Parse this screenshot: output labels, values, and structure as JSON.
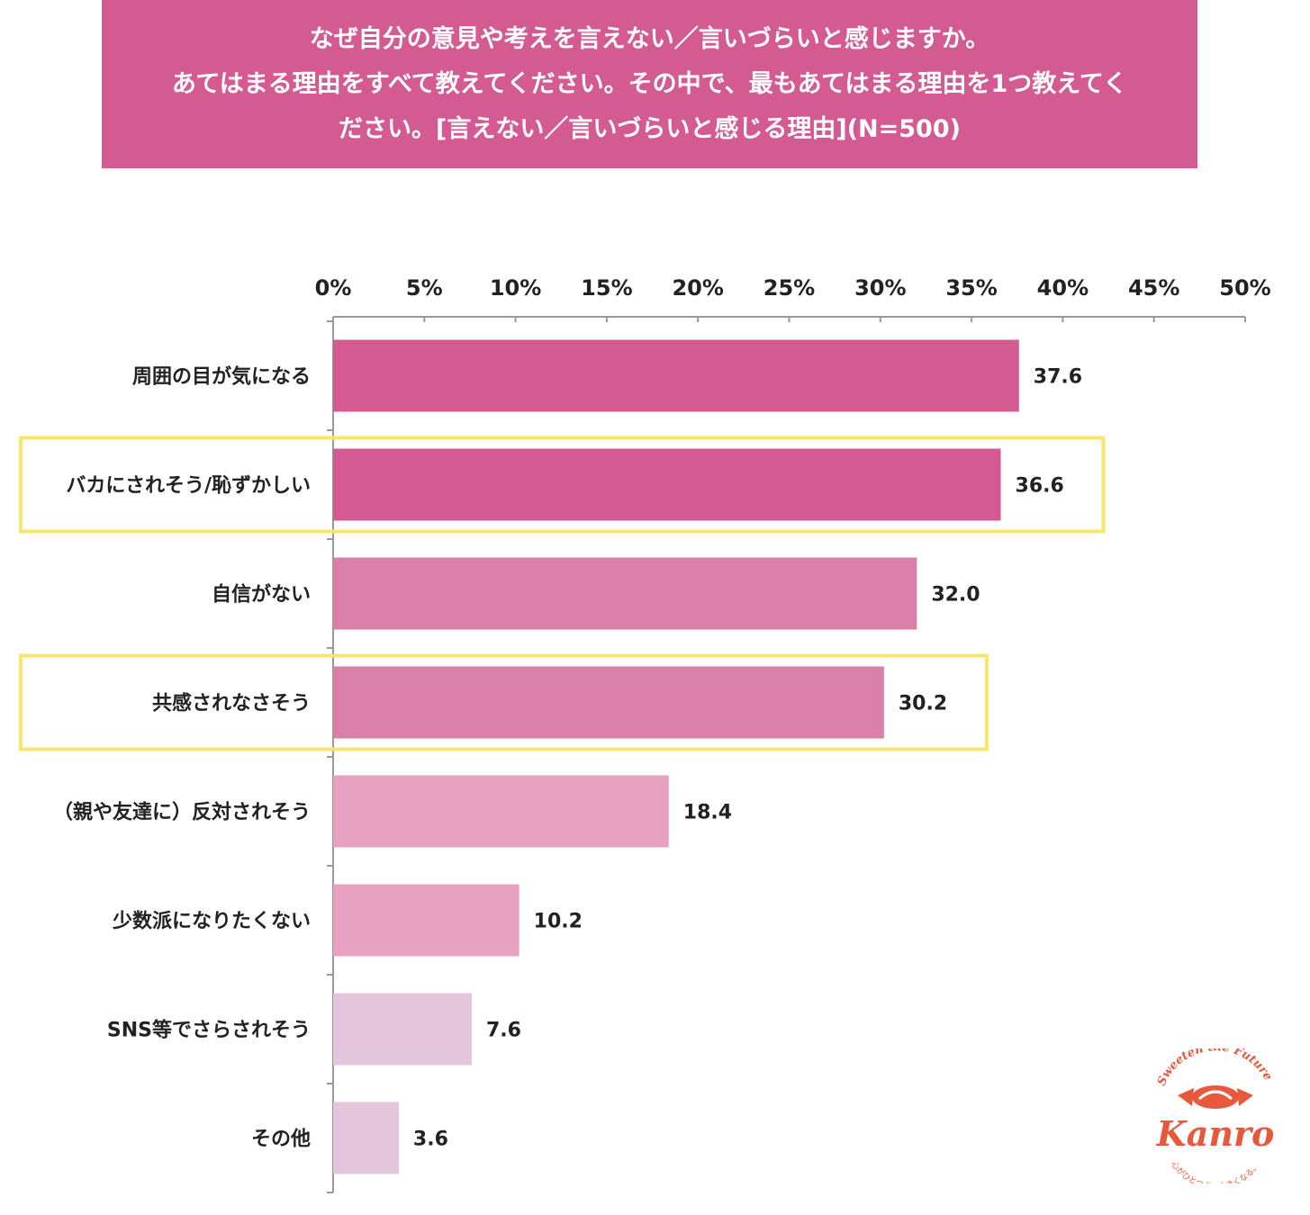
{
  "title_lines": [
    "なぜ自分の意見や考えを言えない／言いづらいと感じますか。",
    "あてはまる理由をすべて教えてください。その中で、最もあてはまる理由を1つ教えてく",
    "ださい。[言えない／言いづらいと感じる理由](N=500)"
  ],
  "chart_data": {
    "type": "bar",
    "orientation": "horizontal",
    "title": "なぜ自分の意見や考えを言えない／言いづらいと感じますか。あてはまる理由をすべて教えてください。その中で、最もあてはまる理由を1つ教えてください。[言えない／言いづらいと感じる理由](N=500)",
    "xlim": [
      0,
      50
    ],
    "ticks": [
      0,
      5,
      10,
      15,
      20,
      25,
      30,
      35,
      40,
      45,
      50
    ],
    "tick_labels": [
      "0%",
      "5%",
      "10%",
      "15%",
      "20%",
      "25%",
      "30%",
      "35%",
      "40%",
      "45%",
      "50%"
    ],
    "categories": [
      "周囲の目が気になる",
      "バカにされそう/恥ずかしい",
      "自信がない",
      "共感されなさそう",
      "（親や友達に）反対されそう",
      "少数派になりたくない",
      "SNS等でさらされそう",
      "その他"
    ],
    "values": [
      37.6,
      36.6,
      32.0,
      30.2,
      18.4,
      10.2,
      7.6,
      3.6
    ],
    "value_labels": [
      "37.6",
      "36.6",
      "32.0",
      "30.2",
      "18.4",
      "10.2",
      "7.6",
      "3.6"
    ],
    "bar_colors": [
      "#d45a92",
      "#d45a92",
      "#da7fa8",
      "#da7fa8",
      "#e7a2c2",
      "#e7a2c2",
      "#e3c5dc",
      "#e3c5dc"
    ],
    "highlighted": [
      1,
      3
    ],
    "highlight_color": "#f7e66b"
  },
  "logo": {
    "tagline_top": "Sweeten the Future",
    "brand": "Kanro",
    "tagline_bottom": "心がひとつぶ、大きくなる。",
    "color": "#e8583c"
  }
}
